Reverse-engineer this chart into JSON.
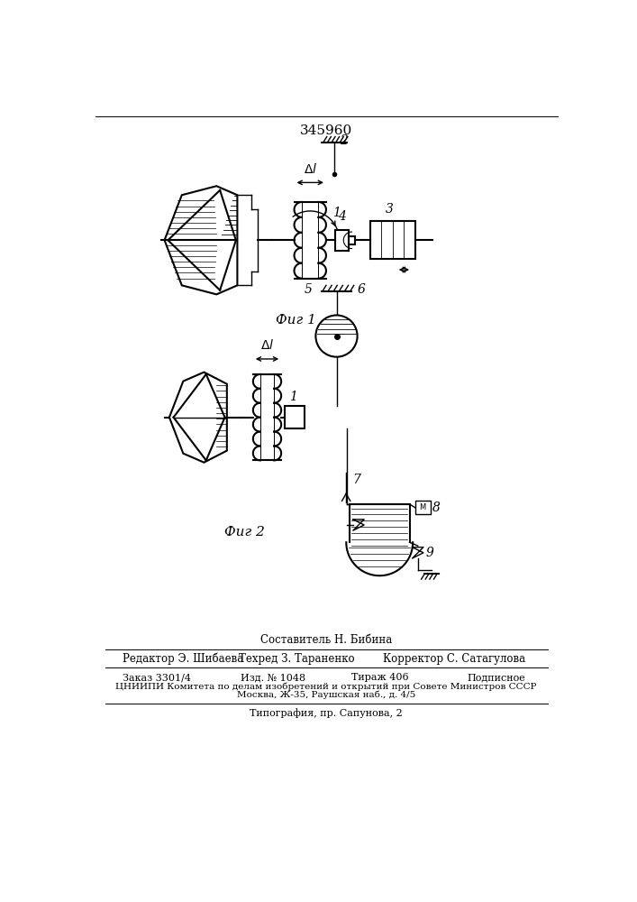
{
  "title": "345960",
  "fig1_label": "Фиг 1",
  "fig2_label": "Фиг 2",
  "composer": "Составитель Н. Бибина",
  "editor": "Редактор Э. Шибаева",
  "techred": "Техред З. Тараненко",
  "corrector": "Корректор С. Сатагулова",
  "order": "Заказ 3301/4",
  "edition": "Изд. № 1048",
  "circulation": "Тираж 406",
  "subscription": "Подписное",
  "institute": "ЦНИИПИ Комитета по делам изобретений и открытий при Совете Министров СССР",
  "address": "Москва, Ж-35, Раушская наб., д. 4/5",
  "typography": "Типография, пр. Сапунова, 2",
  "bg_color": "#ffffff",
  "line_color": "#000000"
}
